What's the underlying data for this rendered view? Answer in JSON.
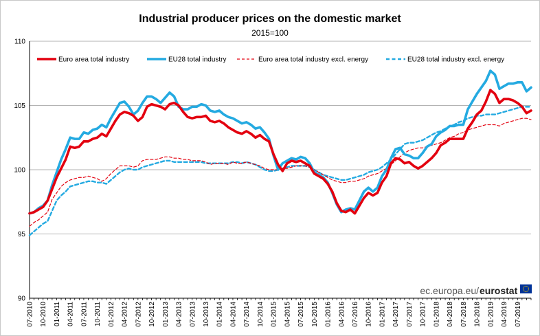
{
  "chart_data": {
    "type": "line",
    "title": "Industrial producer prices on the domestic market",
    "subtitle": "2015=100",
    "ylim": [
      90,
      110
    ],
    "yticks": [
      90,
      95,
      100,
      105,
      110
    ],
    "grid": true,
    "legend_position": "top",
    "x_start": "07-2010",
    "x_end": "07-2019",
    "xtick_labels": [
      "07-2010",
      "10-2010",
      "01-2011",
      "04-2011",
      "07-2011",
      "10-2011",
      "01-2012",
      "04-2012",
      "07-2012",
      "10-2012",
      "01-2013",
      "04-2013",
      "07-2013",
      "10-2013",
      "01-2014",
      "04-2014",
      "07-2014",
      "10-2014",
      "01-2015",
      "04-2015",
      "07-2015",
      "10-2015",
      "01-2016",
      "04-2016",
      "07-2016",
      "10-2016",
      "01-2017",
      "04-2017",
      "07-2017",
      "10-2017",
      "01-2018",
      "04-2018",
      "07-2018",
      "10-2018",
      "01-2019",
      "04-2019",
      "07-2019"
    ],
    "series": [
      {
        "name": "Euro area total industry",
        "color": "#e3000f",
        "style": "solid",
        "values": [
          96.6,
          96.7,
          96.9,
          97.1,
          97.6,
          98.5,
          99.4,
          100.1,
          100.8,
          101.8,
          101.7,
          101.8,
          102.2,
          102.2,
          102.4,
          102.5,
          102.8,
          102.6,
          103.2,
          103.8,
          104.3,
          104.5,
          104.4,
          104.2,
          103.8,
          104.1,
          104.9,
          105.1,
          105.0,
          104.9,
          104.7,
          105.1,
          105.2,
          105.0,
          104.5,
          104.1,
          104.0,
          104.1,
          104.1,
          104.2,
          103.8,
          103.7,
          103.8,
          103.6,
          103.3,
          103.1,
          102.9,
          102.8,
          103.0,
          102.8,
          102.5,
          102.7,
          102.4,
          102.2,
          101.2,
          100.4,
          99.9,
          100.5,
          100.7,
          100.6,
          100.7,
          100.5,
          100.3,
          99.7,
          99.5,
          99.3,
          98.9,
          98.3,
          97.4,
          96.8,
          96.7,
          96.9,
          96.6,
          97.2,
          97.8,
          98.2,
          98.0,
          98.2,
          99.0,
          99.5,
          100.5,
          100.9,
          100.8,
          100.5,
          100.6,
          100.3,
          100.1,
          100.3,
          100.6,
          100.9,
          101.3,
          101.9,
          102.1,
          102.4,
          102.4,
          102.4,
          102.4,
          103.2,
          103.7,
          104.3,
          104.6,
          105.3,
          106.2,
          105.9,
          105.2,
          105.5,
          105.5,
          105.4,
          105.2,
          104.9,
          104.4,
          104.6
        ]
      },
      {
        "name": "EU28 total industry",
        "color": "#24aae1",
        "style": "solid",
        "values": [
          96.6,
          96.7,
          97.0,
          97.2,
          97.6,
          98.8,
          99.8,
          100.8,
          101.6,
          102.5,
          102.4,
          102.4,
          102.9,
          102.8,
          103.1,
          103.2,
          103.5,
          103.3,
          104.0,
          104.6,
          105.2,
          105.3,
          104.9,
          104.3,
          104.6,
          105.2,
          105.7,
          105.7,
          105.5,
          105.2,
          105.6,
          106.0,
          105.7,
          104.9,
          104.7,
          104.7,
          104.9,
          104.9,
          105.1,
          105.0,
          104.6,
          104.5,
          104.6,
          104.3,
          104.1,
          104.0,
          103.8,
          103.6,
          103.7,
          103.5,
          103.2,
          103.3,
          102.9,
          102.4,
          101.1,
          100.0,
          100.5,
          100.7,
          100.9,
          100.8,
          101.0,
          100.9,
          100.5,
          99.8,
          99.6,
          99.4,
          99.0,
          98.2,
          97.3,
          96.7,
          96.9,
          97.0,
          96.9,
          97.6,
          98.3,
          98.6,
          98.3,
          98.6,
          99.5,
          100.0,
          100.9,
          101.6,
          101.7,
          101.2,
          101.1,
          100.9,
          100.9,
          101.3,
          101.8,
          102.0,
          102.6,
          102.9,
          103.1,
          103.4,
          103.4,
          103.5,
          103.5,
          104.7,
          105.3,
          105.9,
          106.4,
          106.9,
          107.7,
          107.4,
          106.3,
          106.5,
          106.7,
          106.7,
          106.8,
          106.8,
          106.1,
          106.4
        ]
      },
      {
        "name": "Euro area total industry excl. energy",
        "color": "#e3000f",
        "style": "dashed-thin",
        "values": [
          95.6,
          95.9,
          96.1,
          96.4,
          96.7,
          97.7,
          98.2,
          98.7,
          99.0,
          99.2,
          99.3,
          99.4,
          99.4,
          99.5,
          99.4,
          99.3,
          99.1,
          99.3,
          99.7,
          100.0,
          100.3,
          100.3,
          100.3,
          100.2,
          100.3,
          100.7,
          100.8,
          100.8,
          100.8,
          100.9,
          101.0,
          101.0,
          100.9,
          100.9,
          100.8,
          100.8,
          100.7,
          100.7,
          100.7,
          100.6,
          100.4,
          100.5,
          100.5,
          100.5,
          100.4,
          100.6,
          100.5,
          100.5,
          100.6,
          100.5,
          100.4,
          100.3,
          100.1,
          100.0,
          100.0,
          100.0,
          100.1,
          100.1,
          100.2,
          100.3,
          100.3,
          100.3,
          100.2,
          100.0,
          99.8,
          99.6,
          99.4,
          99.2,
          99.1,
          99.0,
          99.0,
          99.1,
          99.1,
          99.2,
          99.3,
          99.5,
          99.6,
          99.7,
          99.9,
          100.1,
          100.4,
          100.7,
          101.0,
          101.3,
          101.5,
          101.6,
          101.7,
          101.7,
          101.8,
          101.9,
          102.0,
          102.1,
          102.3,
          102.5,
          102.6,
          102.8,
          102.9,
          103.1,
          103.2,
          103.3,
          103.4,
          103.5,
          103.5,
          103.5,
          103.4,
          103.6,
          103.7,
          103.8,
          103.9,
          104.0,
          104.0,
          103.9
        ]
      },
      {
        "name": "EU28 total industry excl. energy",
        "color": "#24aae1",
        "style": "dashed-thick",
        "values": [
          94.9,
          95.2,
          95.5,
          95.8,
          96.0,
          96.8,
          97.6,
          98.0,
          98.3,
          98.7,
          98.8,
          98.9,
          99.0,
          99.1,
          99.1,
          99.0,
          99.0,
          98.9,
          99.2,
          99.5,
          99.8,
          100.0,
          100.1,
          100.0,
          100.0,
          100.2,
          100.3,
          100.4,
          100.5,
          100.6,
          100.7,
          100.7,
          100.6,
          100.6,
          100.6,
          100.6,
          100.6,
          100.6,
          100.6,
          100.5,
          100.5,
          100.5,
          100.5,
          100.5,
          100.5,
          100.6,
          100.6,
          100.5,
          100.6,
          100.5,
          100.4,
          100.2,
          100.0,
          99.9,
          99.9,
          100.0,
          100.1,
          100.2,
          100.3,
          100.3,
          100.3,
          100.3,
          100.2,
          100.0,
          99.8,
          99.6,
          99.5,
          99.4,
          99.3,
          99.2,
          99.2,
          99.3,
          99.4,
          99.5,
          99.6,
          99.8,
          99.9,
          100.0,
          100.2,
          100.5,
          100.8,
          101.2,
          101.6,
          102.0,
          102.1,
          102.1,
          102.2,
          102.3,
          102.5,
          102.7,
          102.9,
          103.0,
          103.2,
          103.4,
          103.5,
          103.7,
          103.8,
          104.0,
          104.1,
          104.2,
          104.2,
          104.3,
          104.3,
          104.3,
          104.4,
          104.5,
          104.6,
          104.7,
          104.8,
          104.9,
          104.9,
          104.9
        ]
      }
    ],
    "source_label_prefix": "ec.europa.eu/",
    "source_label_brand": "eurostat"
  }
}
